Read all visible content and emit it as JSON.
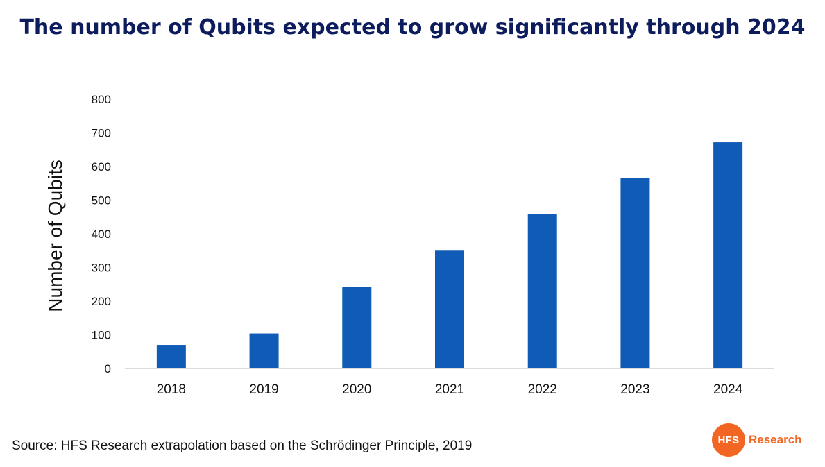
{
  "theme": {
    "title_color": "#0d1c5c",
    "bar_color": "#0f5bb5",
    "logo_color": "#f26522"
  },
  "chart_data": {
    "type": "bar",
    "title": "The number of Qubits expected to grow significantly through 2024",
    "xlabel": "",
    "ylabel": "Number of Qubits",
    "categories": [
      "2018",
      "2019",
      "2020",
      "2021",
      "2022",
      "2023",
      "2024"
    ],
    "values": [
      70,
      104,
      242,
      352,
      459,
      565,
      672
    ],
    "ylim": [
      0,
      800
    ],
    "yticks": [
      "0",
      "100",
      "200",
      "300",
      "400",
      "500",
      "600",
      "700",
      "800"
    ],
    "grid": false,
    "legend": "none"
  },
  "footer": {
    "source": "Source: HFS Research extrapolation based on the Schrödinger Principle, 2019",
    "logo_mark": "HFS",
    "logo_text": "Research"
  }
}
